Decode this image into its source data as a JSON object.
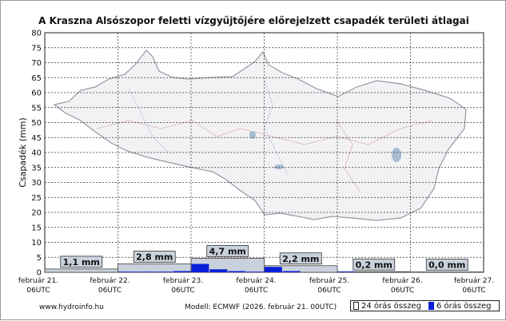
{
  "chart_data": {
    "type": "bar",
    "title": "A Kraszna Alsószopor feletti vízgyűjtőjére előrejelzett csapadék területi átlagai",
    "ylabel": "Csapadék (mm)",
    "ylim": [
      0,
      80
    ],
    "yticks": [
      0,
      5,
      10,
      15,
      20,
      25,
      30,
      35,
      40,
      45,
      50,
      55,
      60,
      65,
      70,
      75,
      80
    ],
    "x_ticks": [
      {
        "date": "február 21.",
        "time": "06UTC"
      },
      {
        "date": "február 22.",
        "time": "06UTC"
      },
      {
        "date": "február 23.",
        "time": "06UTC"
      },
      {
        "date": "február 24.",
        "time": "06UTC"
      },
      {
        "date": "február 25.",
        "time": "06UTC"
      },
      {
        "date": "február 26.",
        "time": "06UTC"
      },
      {
        "date": "február 27.",
        "time": "06UTC"
      }
    ],
    "grid": true,
    "series": [
      {
        "name": "24 órás összeg",
        "values": [
          1.1,
          2.8,
          4.7,
          2.2,
          0.2,
          0.0
        ],
        "labels": [
          "1,1 mm",
          "2,8 mm",
          "4,7 mm",
          "2,2 mm",
          "0,2 mm",
          "0,0 mm"
        ]
      },
      {
        "name": "6 órás összeg",
        "values": [
          0.0,
          0.0,
          0.0,
          0.0,
          0.2,
          0.2,
          0.2,
          0.4,
          2.8,
          1.0,
          0.4,
          0.2,
          1.8,
          0.4,
          0.0,
          0.0,
          0.1,
          0.0,
          0.0,
          0.0,
          0.0,
          0.0,
          0.0,
          0.0
        ]
      }
    ],
    "colors": {
      "six_hour": "#0a1fd9",
      "daily_fill": "#c9d2dc",
      "grid": "#333333",
      "map_outline": "#7a7f8c"
    }
  },
  "footer": {
    "site": "www.hydroinfo.hu",
    "model": "Modell: ECMWF (2026. február 21. 00UTC)"
  },
  "legend": {
    "item24": "24 órás összeg",
    "item6": "6 órás összeg"
  }
}
